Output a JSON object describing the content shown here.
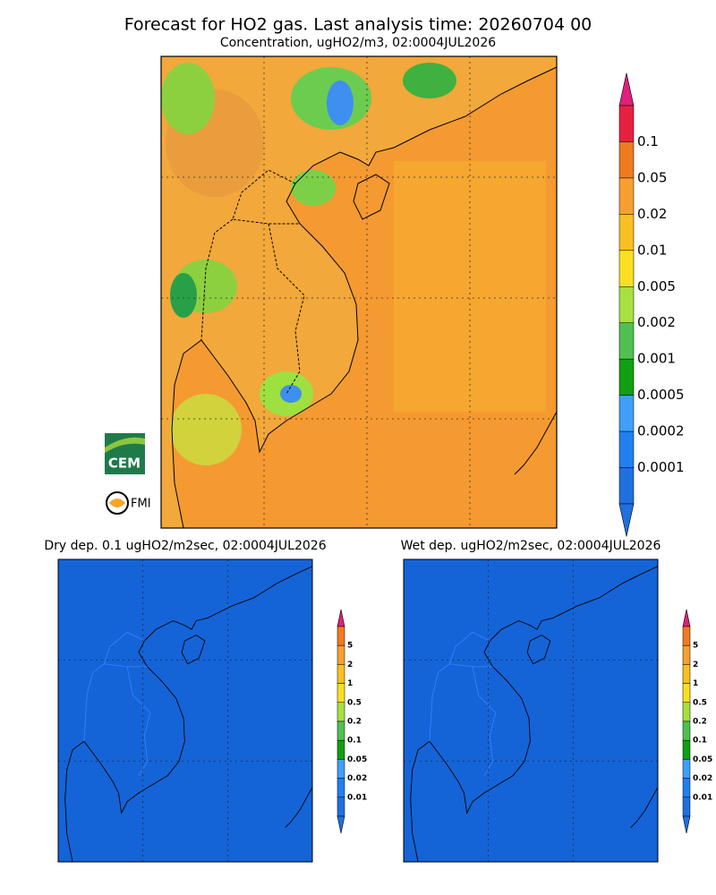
{
  "header": {
    "title": "Forecast for HO2 gas. Last analysis time: 20260704 00",
    "subtitle": "Concentration, ugHO2/m3, 02:0004JUL2026"
  },
  "main_legend": {
    "labels": [
      "0.1",
      "0.05",
      "0.02",
      "0.01",
      "0.005",
      "0.002",
      "0.001",
      "0.0005",
      "0.0002",
      "0.0001"
    ]
  },
  "panels": [
    {
      "title": "Dry dep. 0.1 ugHO2/m2sec, 02:0004JUL2026",
      "legend": [
        "5",
        "2",
        "1",
        "0.5",
        "0.2",
        "0.1",
        "0.05",
        "0.02",
        "0.01"
      ]
    },
    {
      "title": "Wet dep. ugHO2/m2sec, 02:0004JUL2026",
      "legend": [
        "5",
        "2",
        "1",
        "0.5",
        "0.2",
        "0.1",
        "0.05",
        "0.02",
        "0.01"
      ]
    }
  ],
  "logos": {
    "cem": "CEM",
    "fmi": "FMI"
  }
}
